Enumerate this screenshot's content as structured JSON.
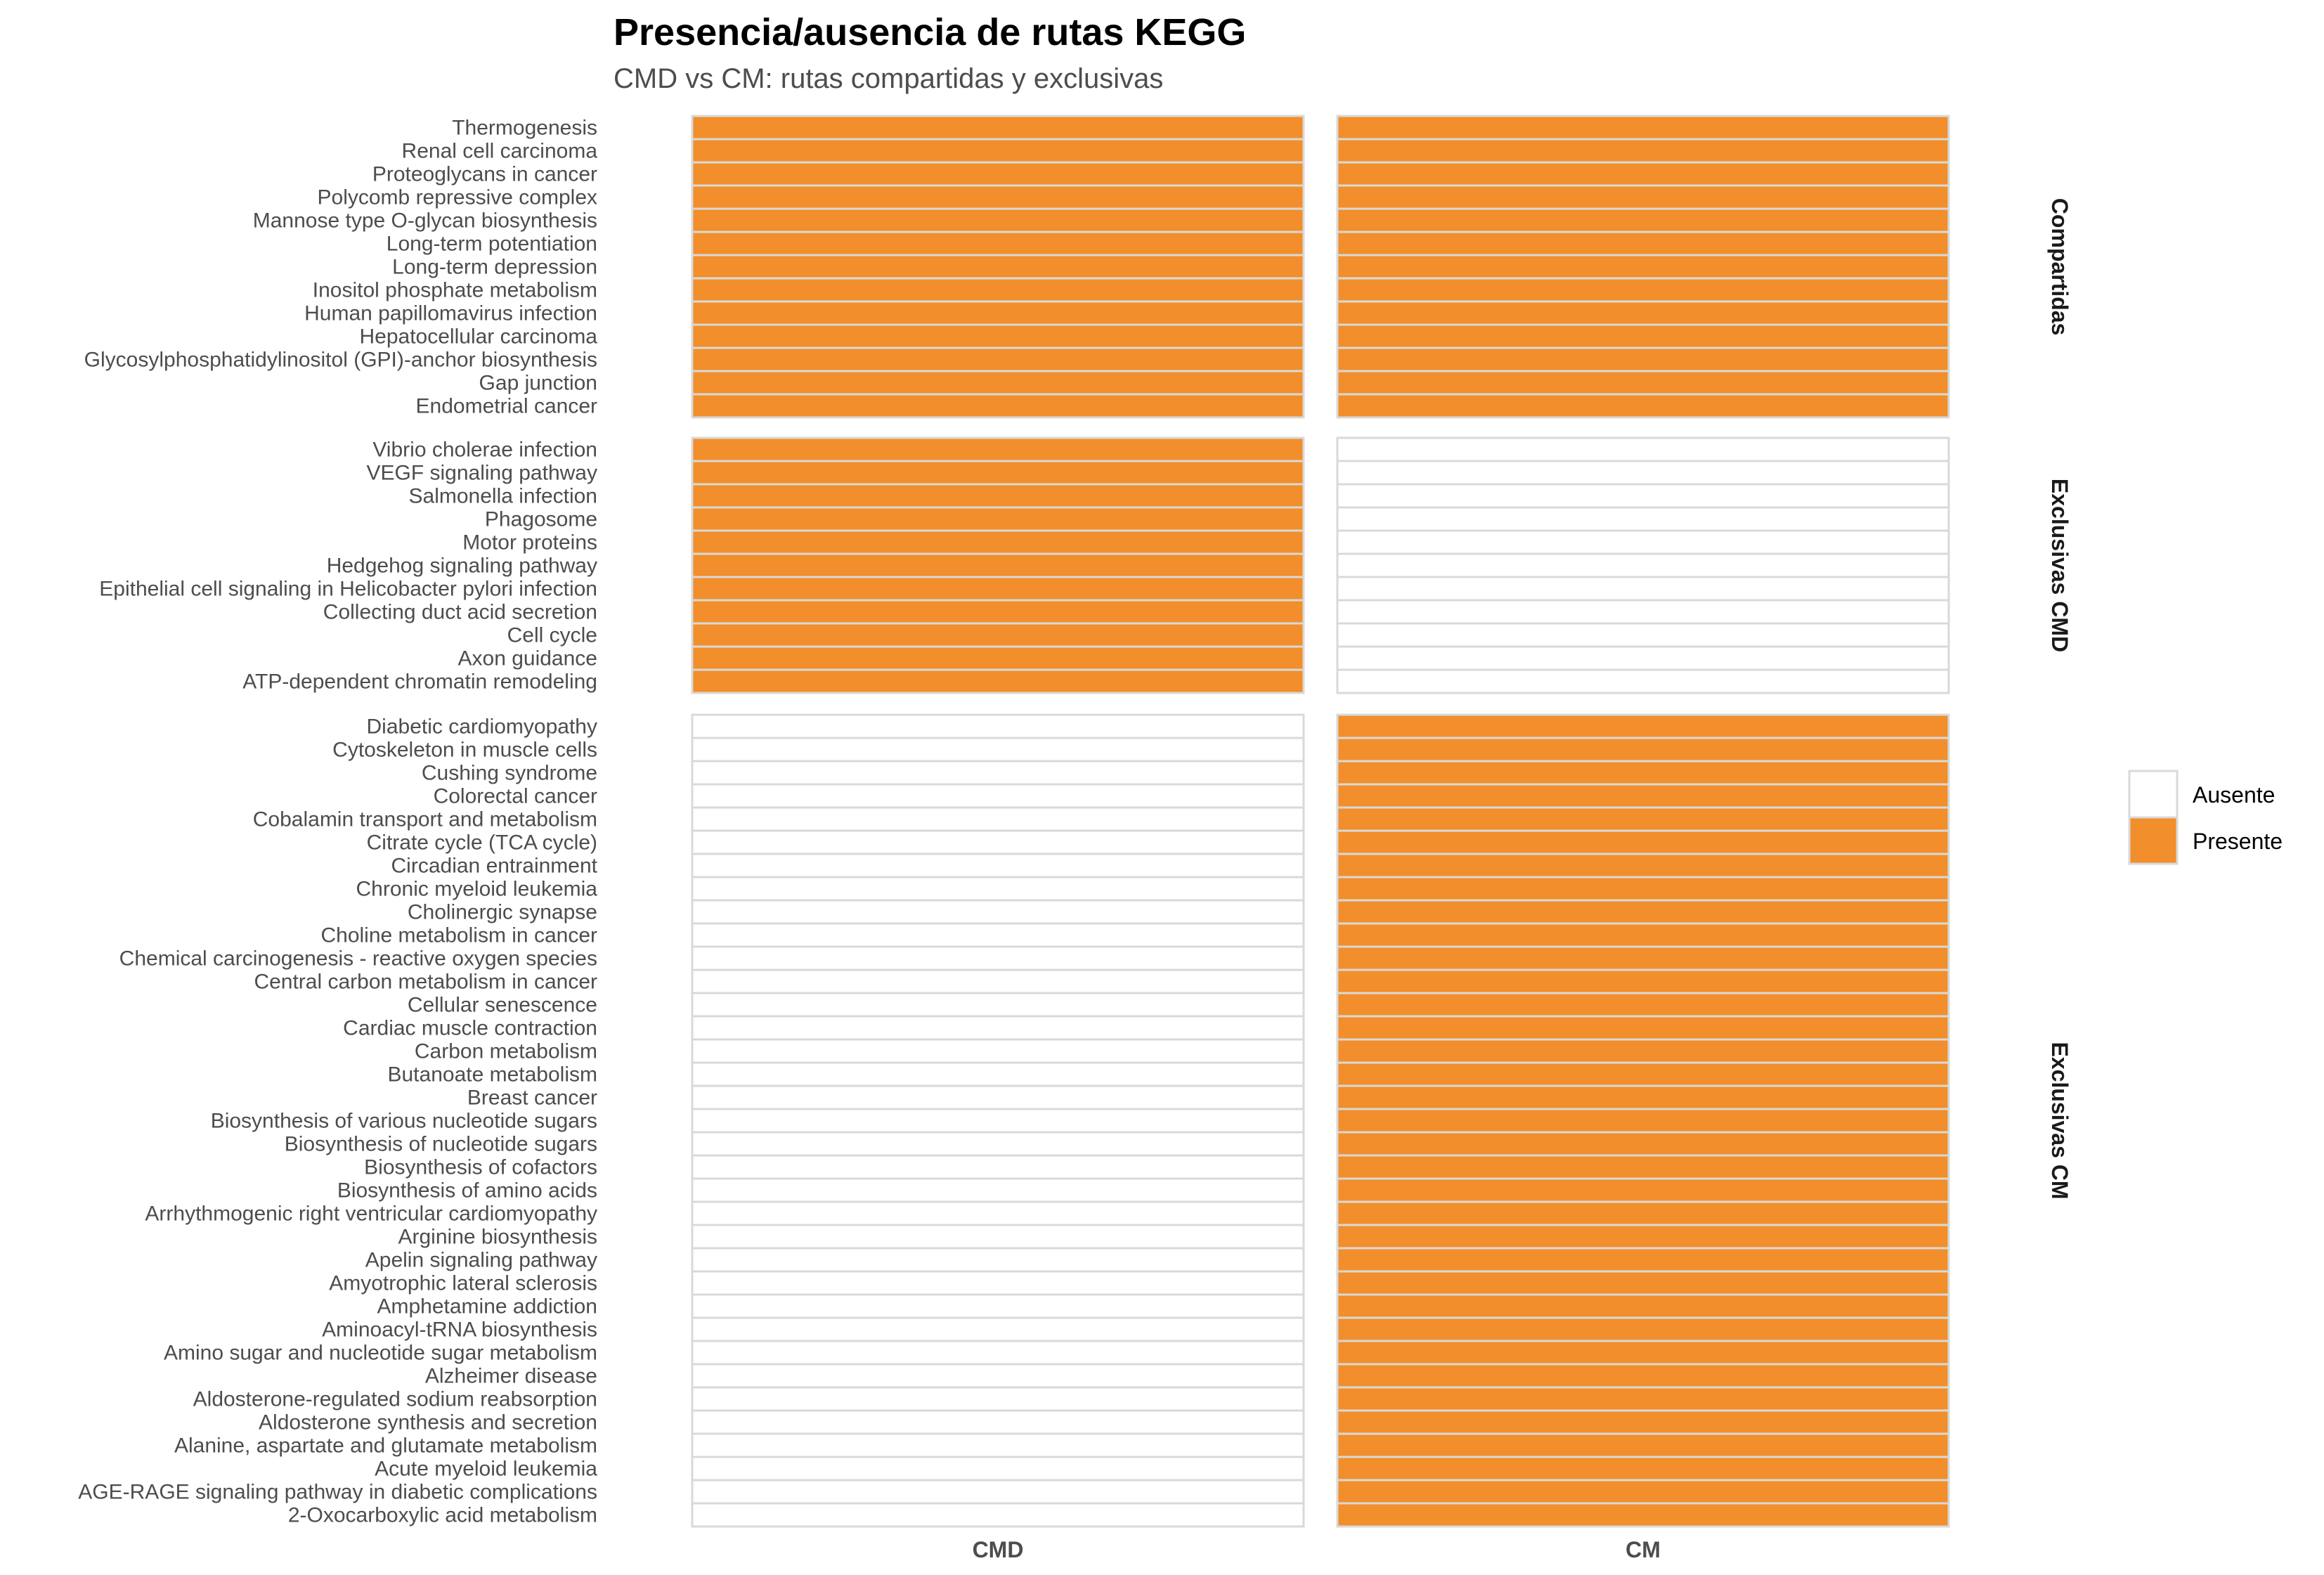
{
  "chart_data": {
    "type": "heatmap",
    "title": "Presencia/ausencia de rutas KEGG",
    "subtitle": "CMD vs CM: rutas compartidas y exclusivas",
    "columns": [
      "CMD",
      "CM"
    ],
    "colors": {
      "Presente": "#F28E2B",
      "Ausente": "#FFFFFF",
      "border": "#D9D9D9"
    },
    "legend": {
      "position": "right",
      "items": [
        {
          "label": "Ausente",
          "color": "#FFFFFF"
        },
        {
          "label": "Presente",
          "color": "#F28E2B"
        }
      ]
    },
    "facets": [
      {
        "label": "Compartidas",
        "rows": [
          "Thermogenesis",
          "Renal cell carcinoma",
          "Proteoglycans in cancer",
          "Polycomb repressive complex",
          "Mannose type O-glycan biosynthesis",
          "Long-term potentiation",
          "Long-term depression",
          "Inositol phosphate metabolism",
          "Human papillomavirus infection",
          "Hepatocellular carcinoma",
          "Glycosylphosphatidylinositol (GPI)-anchor biosynthesis",
          "Gap junction",
          "Endometrial cancer"
        ],
        "presence": {
          "CMD": "Presente",
          "CM": "Presente"
        }
      },
      {
        "label": "Exclusivas CMD",
        "rows": [
          "Vibrio cholerae infection",
          "VEGF signaling pathway",
          "Salmonella infection",
          "Phagosome",
          "Motor proteins",
          "Hedgehog signaling pathway",
          "Epithelial cell signaling in Helicobacter pylori infection",
          "Collecting duct acid secretion",
          "Cell cycle",
          "Axon guidance",
          "ATP-dependent chromatin remodeling"
        ],
        "presence": {
          "CMD": "Presente",
          "CM": "Ausente"
        }
      },
      {
        "label": "Exclusivas CM",
        "rows": [
          "Diabetic cardiomyopathy",
          "Cytoskeleton in muscle cells",
          "Cushing syndrome",
          "Colorectal cancer",
          "Cobalamin transport and metabolism",
          "Citrate cycle (TCA cycle)",
          "Circadian entrainment",
          "Chronic myeloid leukemia",
          "Cholinergic synapse",
          "Choline metabolism in cancer",
          "Chemical carcinogenesis - reactive oxygen species",
          "Central carbon metabolism in cancer",
          "Cellular senescence",
          "Cardiac muscle contraction",
          "Carbon metabolism",
          "Butanoate metabolism",
          "Breast cancer",
          "Biosynthesis of various nucleotide sugars",
          "Biosynthesis of nucleotide sugars",
          "Biosynthesis of cofactors",
          "Biosynthesis of amino acids",
          "Arrhythmogenic right ventricular cardiomyopathy",
          "Arginine biosynthesis",
          "Apelin signaling pathway",
          "Amyotrophic lateral sclerosis",
          "Amphetamine addiction",
          "Aminoacyl-tRNA biosynthesis",
          "Amino sugar and nucleotide sugar metabolism",
          "Alzheimer disease",
          "Aldosterone-regulated sodium reabsorption",
          "Aldosterone synthesis and secretion",
          "Alanine, aspartate and glutamate metabolism",
          "Acute myeloid leukemia",
          "AGE-RAGE signaling pathway in diabetic complications",
          "2-Oxocarboxylic acid metabolism"
        ],
        "presence": {
          "CMD": "Ausente",
          "CM": "Presente"
        }
      }
    ]
  }
}
